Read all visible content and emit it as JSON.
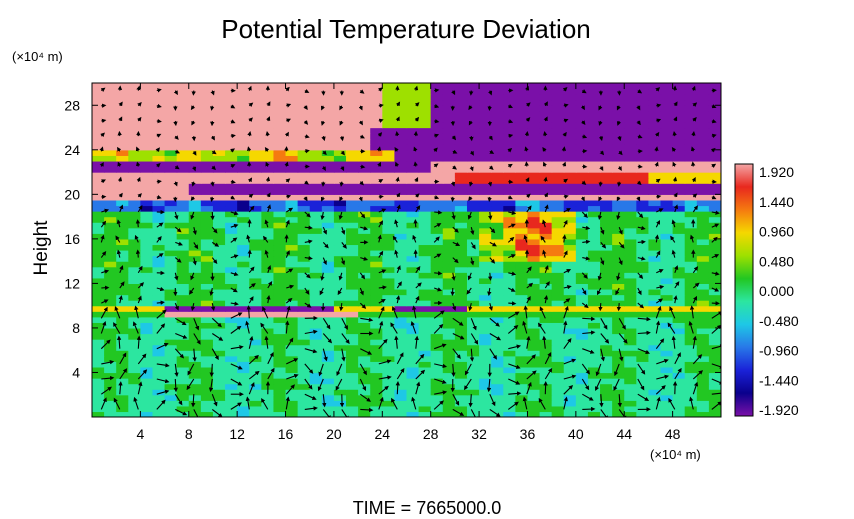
{
  "chart_data": {
    "type": "heatmap",
    "title": "Potential Temperature Deviation",
    "ylabel": "Height",
    "x_unit": "(×10⁴ m)",
    "y_unit": "(×10⁴ m)",
    "xlim": [
      0,
      52
    ],
    "ylim": [
      0,
      30
    ],
    "x_ticks": [
      4,
      8,
      12,
      16,
      20,
      24,
      28,
      32,
      36,
      40,
      44,
      48
    ],
    "y_ticks": [
      4,
      8,
      12,
      16,
      20,
      24,
      28
    ],
    "colorbar": {
      "range": [
        -1.92,
        1.92
      ],
      "tick_labels": [
        "1.920",
        "1.440",
        "0.960",
        "0.480",
        "0.000",
        "-0.480",
        "-0.960",
        "-1.440",
        "-1.920"
      ],
      "colors": [
        "#f4a6a6",
        "#e8281e",
        "#f57a10",
        "#f5d800",
        "#9ee000",
        "#22c722",
        "#2ce6a0",
        "#1ec8e6",
        "#2878e8",
        "#1a22d8",
        "#0a008c",
        "#7a10a8"
      ]
    },
    "time_label": "TIME  =  7665000.0",
    "overlay": "wind vector arrows"
  }
}
